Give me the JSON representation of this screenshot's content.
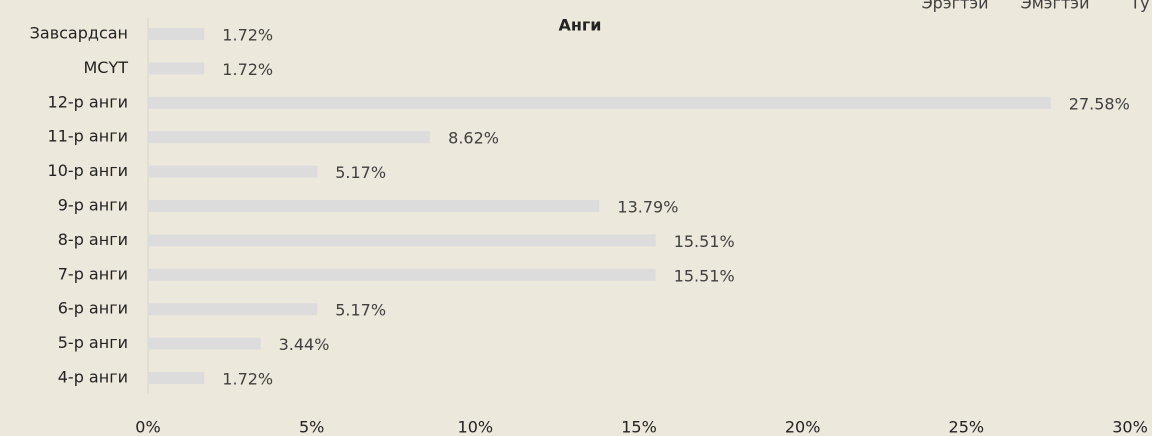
{
  "chart_data": {
    "type": "hbar",
    "title": "Анги",
    "header_labels": [
      "Эрэгтэй",
      "Эмэгтэй",
      "Ту"
    ],
    "categories": [
      "Завсардсан",
      "МСҮТ",
      "12-р анги",
      "11-р анги",
      "10-р анги",
      "9-р анги",
      "8-р анги",
      "7-р анги",
      "6-р анги",
      "5-р анги",
      "4-р анги"
    ],
    "values": [
      1.72,
      1.72,
      27.58,
      8.62,
      5.17,
      13.79,
      15.51,
      15.51,
      5.17,
      3.44,
      1.72
    ],
    "value_labels": [
      "1.72%",
      "1.72%",
      "27.58%",
      "8.62%",
      "5.17%",
      "13.79%",
      "15.51%",
      "15.51%",
      "5.17%",
      "3.44%",
      "1.72%"
    ],
    "color": "#dcdcdc",
    "xlim": [
      0,
      30
    ],
    "xticks": [
      {
        "value": 0,
        "label": "0%"
      },
      {
        "value": 5,
        "label": "5%"
      },
      {
        "value": 10,
        "label": "10%"
      },
      {
        "value": 15,
        "label": "15%"
      },
      {
        "value": 20,
        "label": "20%"
      },
      {
        "value": 25,
        "label": "25%"
      },
      {
        "value": 30,
        "label": "30%"
      }
    ],
    "grid": false
  }
}
